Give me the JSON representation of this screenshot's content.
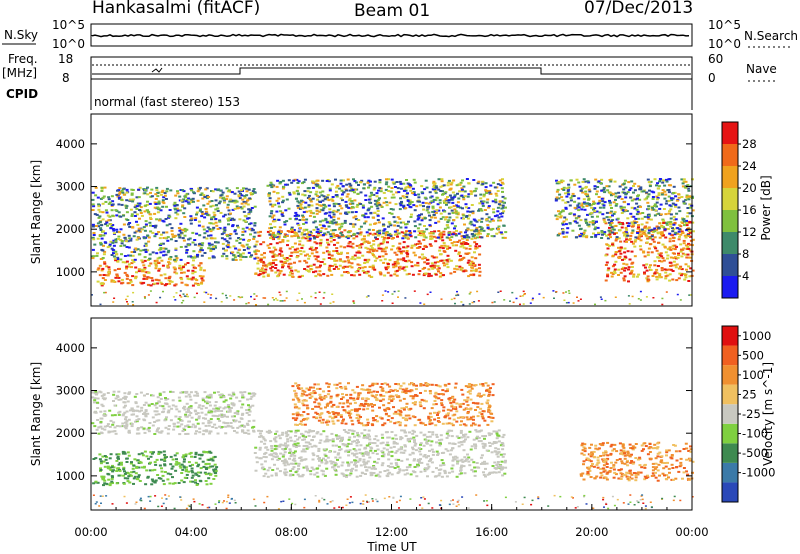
{
  "header": {
    "station": "Hankasalmi (fitACF)",
    "beam": "Beam 01",
    "date": "07/Dec/2013"
  },
  "panels": {
    "nsky": {
      "left_label": "N.Sky",
      "right_label": "N.Search",
      "left_ticks": [
        "10^5",
        "10^0"
      ],
      "right_ticks": [
        "10^5",
        "10^0"
      ]
    },
    "freq": {
      "left_label_1": "Freq.",
      "left_label_2": "[MHz]",
      "right_label": "Nave",
      "left_ticks": [
        "18",
        "8"
      ],
      "right_ticks": [
        "60",
        "0"
      ]
    },
    "cpid": {
      "left_label": "CPID",
      "mode_text": "normal (fast stereo) 153"
    }
  },
  "chart_data": [
    {
      "type": "heatmap",
      "title": "",
      "ylabel": "Slant Range [km]",
      "xlabel": "",
      "ylim": [
        200,
        4700
      ],
      "yticks": [
        1000,
        2000,
        3000,
        4000
      ],
      "colorbar": {
        "label": "Power [dB]",
        "ticks": [
          4,
          8,
          12,
          16,
          20,
          24,
          28
        ],
        "colors": [
          "#1b1bf0",
          "#2f4f96",
          "#3e8a6a",
          "#7fc03e",
          "#d6d43a",
          "#f0a21e",
          "#f06a1a",
          "#e61414"
        ]
      },
      "scatter_regions": [
        {
          "x_hours": [
            0.2,
            4.5
          ],
          "range_km": [
            700,
            1300
          ],
          "level": "high"
        },
        {
          "x_hours": [
            6.5,
            15.5
          ],
          "range_km": [
            900,
            2000
          ],
          "level": "high"
        },
        {
          "x_hours": [
            0,
            6.5
          ],
          "range_km": [
            1300,
            3000
          ],
          "level": "mixed"
        },
        {
          "x_hours": [
            7,
            16.5
          ],
          "range_km": [
            1800,
            3200
          ],
          "level": "mixed"
        },
        {
          "x_hours": [
            20.5,
            24
          ],
          "range_km": [
            800,
            2200
          ],
          "level": "high"
        },
        {
          "x_hours": [
            18.5,
            24
          ],
          "range_km": [
            1800,
            3200
          ],
          "level": "mixed"
        }
      ]
    },
    {
      "type": "heatmap",
      "title": "",
      "ylabel": "Slant Range [km]",
      "xlabel": "Time UT",
      "ylim": [
        200,
        4700
      ],
      "yticks": [
        1000,
        2000,
        3000,
        4000
      ],
      "x_ticks": [
        "00:00",
        "04:00",
        "08:00",
        "12:00",
        "16:00",
        "20:00",
        "00:00"
      ],
      "colorbar": {
        "label": "Velocity [m s^-1]",
        "ticks": [
          "1000",
          "500",
          "100",
          "25",
          "-25",
          "-100",
          "-500",
          "-1000"
        ],
        "colors": [
          "#2a48b8",
          "#3b7aa8",
          "#3e8a50",
          "#7fd040",
          "#c8c8c0",
          "#f0c060",
          "#f09030",
          "#f06020",
          "#e01010"
        ]
      },
      "scatter_regions": [
        {
          "x_hours": [
            0,
            6.5
          ],
          "range_km": [
            2000,
            3000
          ],
          "level": "ground"
        },
        {
          "x_hours": [
            6.5,
            16.5
          ],
          "range_km": [
            1000,
            2100
          ],
          "level": "ground"
        },
        {
          "x_hours": [
            0,
            5
          ],
          "range_km": [
            800,
            1600
          ],
          "level": "positive"
        },
        {
          "x_hours": [
            19.5,
            24
          ],
          "range_km": [
            900,
            1800
          ],
          "level": "negative"
        },
        {
          "x_hours": [
            8,
            16
          ],
          "range_km": [
            2200,
            3200
          ],
          "level": "negative"
        }
      ]
    }
  ]
}
